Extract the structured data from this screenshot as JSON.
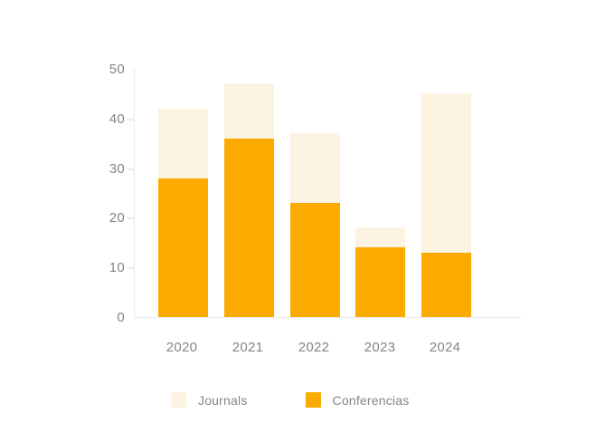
{
  "chart_data": {
    "type": "bar",
    "stacked": true,
    "title": "",
    "xlabel": "",
    "ylabel": "",
    "categories": [
      "2020",
      "2021",
      "2022",
      "2023",
      "2024"
    ],
    "series": [
      {
        "name": "Journals",
        "color": "#FDF3E2",
        "values": [
          14,
          11,
          14,
          4,
          32
        ]
      },
      {
        "name": "Conferencias",
        "color": "#FBAB00",
        "values": [
          28,
          36,
          23,
          14,
          13
        ]
      }
    ],
    "stack_order_bottom_to_top": [
      "Conferencias",
      "Journals"
    ],
    "totals": [
      42,
      47,
      37,
      18,
      45
    ],
    "ylim": [
      0,
      50
    ],
    "yticks": [
      0,
      10,
      20,
      30,
      40,
      50
    ],
    "grid": false,
    "legend": {
      "position": "bottom",
      "items": [
        {
          "label": "Journals",
          "color": "#FDF3E2"
        },
        {
          "label": "Conferencias",
          "color": "#FBAB00"
        }
      ]
    }
  },
  "colors": {
    "background": "#FFFFFF",
    "axis_line": "#E8EAED",
    "tick_text": "#80868B"
  }
}
